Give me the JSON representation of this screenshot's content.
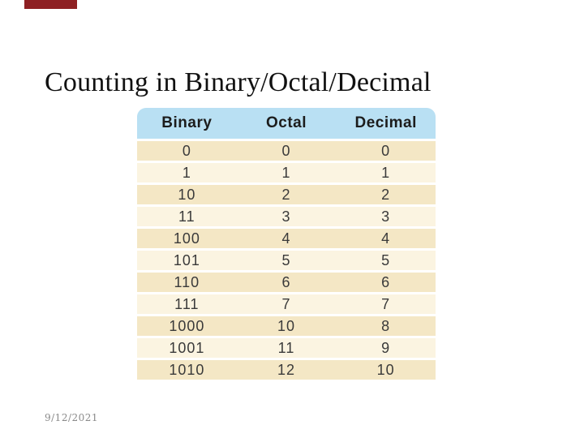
{
  "slide": {
    "title": "Counting in Binary/Octal/Decimal",
    "footer_date": "9/12/2021"
  },
  "table": {
    "columns": [
      "Binary",
      "Octal",
      "Decimal"
    ],
    "rows": [
      [
        "0",
        "0",
        "0"
      ],
      [
        "1",
        "1",
        "1"
      ],
      [
        "10",
        "2",
        "2"
      ],
      [
        "11",
        "3",
        "3"
      ],
      [
        "100",
        "4",
        "4"
      ],
      [
        "101",
        "5",
        "5"
      ],
      [
        "110",
        "6",
        "6"
      ],
      [
        "111",
        "7",
        "7"
      ],
      [
        "1000",
        "10",
        "8"
      ],
      [
        "1001",
        "11",
        "9"
      ],
      [
        "1010",
        "12",
        "10"
      ]
    ]
  },
  "colors": {
    "accent_bar": "#8e2023",
    "header_bg": "#b9e0f3",
    "header_text": "#1c1c1c",
    "row_dark": "#f4e7c5",
    "row_light": "#fbf4e1",
    "cell_text": "#3a3a3a",
    "title_text": "#111111",
    "date_text": "#8a8a8a"
  }
}
